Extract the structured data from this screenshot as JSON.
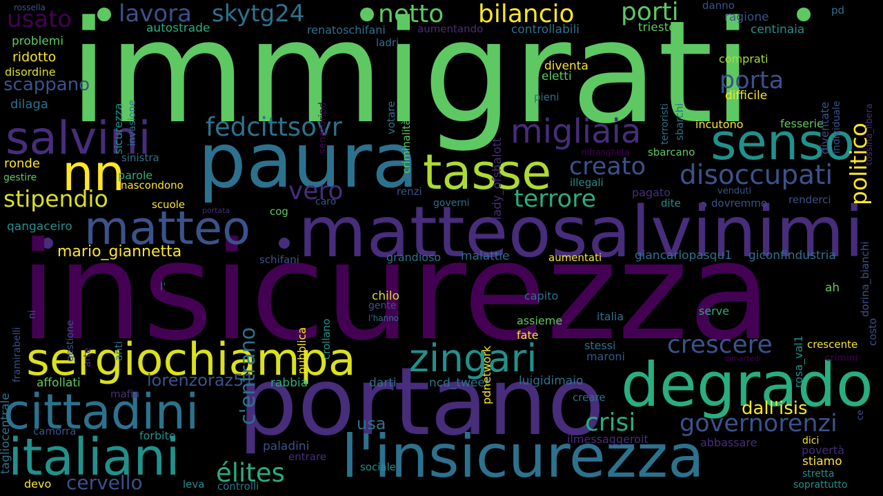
{
  "palette": {
    "c0": "#440154",
    "c1": "#472d7b",
    "c2": "#3b528b",
    "c3": "#2c728e",
    "c4": "#21918c",
    "c5": "#28ae80",
    "c6": "#5ec962",
    "c7": "#addc30",
    "c8": "#fde725",
    "background": "#000000"
  },
  "words": {
    "immigrati": "immigrati",
    "insicurezza": "insicurezza",
    "matteosalvinimi": "matteosalvinimi",
    "portano": "portano",
    "paura": "paura",
    "l_insicurezza": "l'insicurezza",
    "degrado": "degrado",
    "sergiochiampa": "sergiochiampa",
    "cittadini": "cittadini",
    "italiani": "italiani",
    "matteo": "matteo",
    "salvini": "salvini",
    "senso": "senso",
    "tasse": "tasse",
    "migliaia": "migliaia",
    "zingari": "zingari",
    "nn": "nn",
    "governorenzi": "governorenzi",
    "crescere": "crescere",
    "crisi": "crisi",
    "disoccupati": "disoccupati",
    "fedcittsovr": "fedcittsovr",
    "c_entrano": "c'entrano",
    "politico": "politico",
    "elites": "élites",
    "stipendio": "stipendio",
    "creato": "creato",
    "terrore": "terrore",
    "vero": "vero",
    "netto": "netto",
    "bilancio": "bilancio",
    "porti": "porti",
    "skytg24": "skytg24",
    "lavora": "lavora",
    "usato": "usato",
    "porta": "porta",
    "cervello": "cervello",
    "dall_isis": "dall'isis",
    "scappano": "scappano",
    "lorenzoraz51": "lorenzoraz51",
    "mario_giannetta": "mario_giannetta",
    "usa": "usa",
    "ridotto": "ridotto",
    "ronde": "ronde",
    "problemi": "problemi",
    "dilaga": "dilaga",
    "disordine": "disordine",
    "autostrade": "autostrade",
    "renatoschifani": "renatoschifani",
    "aumentando": "aumentando",
    "controllabili": "controllabili",
    "ragione": "ragione",
    "centinaia": "centinaia",
    "trieste": "trieste",
    "danno": "danno",
    "pd": "pd",
    "rossella": "rossella",
    "ladri": "ladri",
    "comprati": "comprati",
    "difficile": "difficile",
    "incutono": "incutono",
    "fesserie": "fesserie",
    "diventa": "diventa",
    "eletti": "eletti",
    "pieni": "pieni",
    "sbarcano": "sbarcano",
    "ndrangheta": "ndrangheta",
    "illegali": "illegali",
    "pagato": "pagato",
    "dite": "dite",
    "dovremmo": "dovremmo",
    "renderci": "renderci",
    "renzi": "renzi",
    "venduti": "venduti",
    "governi": "governi",
    "caro": "caro",
    "cog": "cog",
    "portata": "portata",
    "scuole": "scuole",
    "nascondono": "nascondono",
    "gestire": "gestire",
    "parole": "parole",
    "sinistra": "sinistra",
    "qangaceiro": "qangaceiro",
    "grandioso": "grandioso",
    "malattie": "malattie",
    "aumentati": "aumentati",
    "giancarlopasqu1": "giancarlopasqu1",
    "giconfindustria": "giconfindustria",
    "schifani": "schifani",
    "l_": "l'",
    "chilo": "chilo",
    "gente": "gente",
    "l_hanno": "l'hanno",
    "capito": "capito",
    "assieme": "assieme",
    "fate": "fate",
    "italia": "italia",
    "serve": "serve",
    "ah": "ah",
    "stessi": "stessi",
    "maroni": "maroni",
    "crescente": "crescente",
    "crimini": "crimini",
    "dimartedi": "dimartedi",
    "affollati": "affollati",
    "rabbia": "rabbia",
    "darti": "darti",
    "ncd_tweet": "ncd_tweet",
    "luigidimaio": "luigidimaio",
    "mafia": "mafia",
    "creare": "creare",
    "camorra": "camorra",
    "forbite": "forbite",
    "ilmessaggeroit": "ilmessaggeroit",
    "abbassare": "abbassare",
    "dici": "dici",
    "poverta": "povertà",
    "paladini": "paladini",
    "entrare": "entrare",
    "sociale": "sociale",
    "stiamo": "stiamo",
    "stretta": "stretta",
    "devo": "devo",
    "leva": "leva",
    "controlli": "controlli",
    "soprattutto": "soprattutto",
    "sicurezza": "sicurezza",
    "invasione": "invasione",
    "senatoripd": "senatoripd",
    "votare": "votare",
    "criminalita": "criminalità",
    "lady_ofshalott": "lady_ofshalott",
    "terroristi": "terroristi",
    "sbarchi": "sbarchi",
    "diventate": "diventate",
    "individuale": "individuale",
    "tossina_libera": "tossina_libera",
    "dorina_bianchi": "dorina_bianchi",
    "tagliocentrale": "tagliocentrale",
    "framirabelli": "framirabelli",
    "ni": "ni",
    "gestione": "gestione",
    "arte": "arte",
    "anti": "anti",
    "pubblica": "pubblica",
    "crollano": "crollano",
    "pdnetwork": "pdnetwork",
    "rosa_val1": "rosa_val1",
    "costo": "costo",
    "ce": "ce"
  }
}
